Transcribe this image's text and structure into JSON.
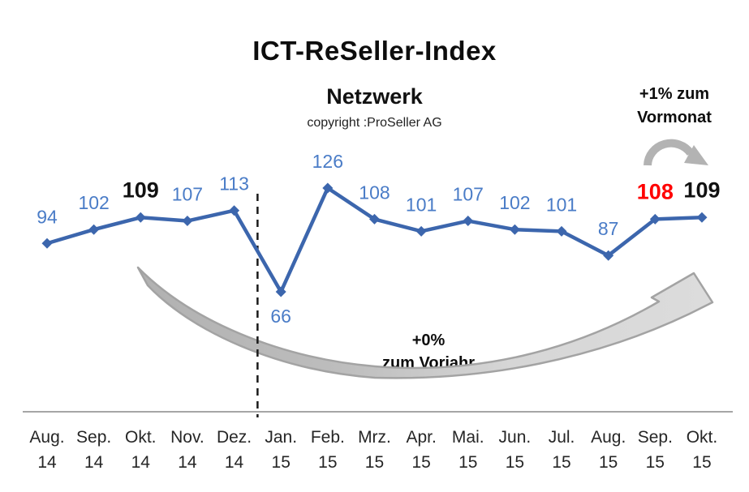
{
  "header": {
    "title": "ICT-ReSeller-Index",
    "subtitle": "Netzwerk",
    "copyright": "copyright :ProSeller AG"
  },
  "annotations": {
    "vormonat": {
      "line1": "+1% zum",
      "line2": "Vormonat"
    },
    "vorjahr": {
      "line1": "+0%",
      "line2": "zum Vorjahr"
    }
  },
  "chart_data": {
    "type": "line",
    "title": "ICT-ReSeller-Index",
    "subtitle": "Netzwerk",
    "copyright": "copyright :ProSeller AG",
    "categories": [
      "Aug. 14",
      "Sep. 14",
      "Okt. 14",
      "Nov. 14",
      "Dez. 14",
      "Jan. 15",
      "Feb. 15",
      "Mrz. 15",
      "Apr. 15",
      "Mai. 15",
      "Jun. 15",
      "Jul. 15",
      "Aug. 15",
      "Sep. 15",
      "Okt. 15"
    ],
    "values": [
      94,
      102,
      109,
      107,
      113,
      66,
      126,
      108,
      101,
      107,
      102,
      101,
      87,
      108,
      109
    ],
    "ylim": [
      60,
      130
    ],
    "grid": false,
    "legend": false,
    "divider_after_index": 4,
    "label_below_indices": [
      5
    ],
    "label_styles": {
      "default": {
        "color": "#4a7cc7",
        "bold": false,
        "size": 23
      },
      "overrides": [
        {
          "index": 2,
          "color": "#111111",
          "bold": true,
          "size": 27
        },
        {
          "index": 13,
          "color": "#ff0000",
          "bold": true,
          "size": 27
        },
        {
          "index": 14,
          "color": "#111111",
          "bold": true,
          "size": 27
        }
      ]
    },
    "colors": {
      "line": "#3c66ad",
      "marker": "#3c66ad",
      "label_default": "#4a7cc7",
      "label_emphasis": "#111111",
      "label_change": "#ff0000",
      "axis_line": "#a6a6a6",
      "divider": "#1a1a1a",
      "axis_text": "#262626",
      "arrow_solid": "#b3b3b3",
      "arrow_fill_light": "#d9d9d9",
      "arrow_stroke": "#a3a3a3"
    }
  }
}
